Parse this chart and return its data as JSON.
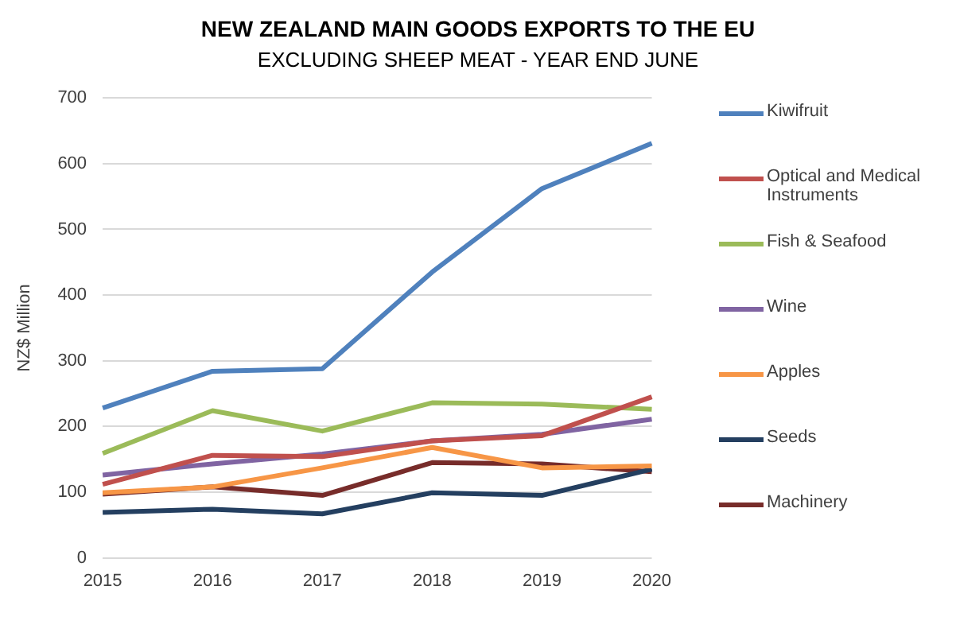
{
  "chart_data": {
    "type": "line",
    "title": "NEW ZEALAND MAIN GOODS EXPORTS TO THE EU",
    "subtitle": "EXCLUDING SHEEP MEAT - YEAR END JUNE",
    "ylabel": "NZ$ Million",
    "categories": [
      "2015",
      "2016",
      "2017",
      "2018",
      "2019",
      "2020"
    ],
    "series": [
      {
        "name": "Kiwifruit",
        "color": "#4f81bd",
        "values": [
          228,
          284,
          288,
          435,
          562,
          631
        ]
      },
      {
        "name": "Optical and Medical Instruments",
        "color": "#c0504d",
        "values": [
          112,
          156,
          154,
          178,
          186,
          245
        ]
      },
      {
        "name": "Fish & Seafood",
        "color": "#9bbb59",
        "values": [
          159,
          224,
          193,
          236,
          234,
          226
        ]
      },
      {
        "name": "Wine",
        "color": "#8064a2",
        "values": [
          126,
          143,
          158,
          178,
          188,
          211
        ]
      },
      {
        "name": "Apples",
        "color": "#f79646",
        "values": [
          99,
          108,
          137,
          168,
          137,
          140
        ]
      },
      {
        "name": "Seeds",
        "color": "#243f60",
        "values": [
          69,
          74,
          67,
          99,
          95,
          135
        ]
      },
      {
        "name": "Machinery",
        "color": "#772c2a",
        "values": [
          97,
          108,
          95,
          145,
          143,
          131
        ]
      }
    ],
    "ylim": [
      0,
      700
    ],
    "yticks": [
      0,
      100,
      200,
      300,
      400,
      500,
      600,
      700
    ],
    "grid": "y",
    "legend": "right",
    "marker": "none",
    "line_style": "solid"
  }
}
